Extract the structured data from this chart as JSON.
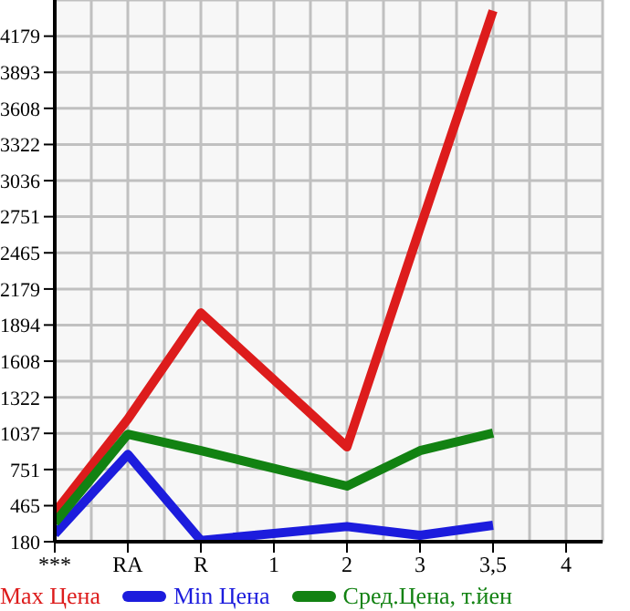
{
  "chart_data": {
    "type": "line",
    "categories": [
      "***",
      "RA",
      "R",
      "1",
      "2",
      "3",
      "3,5",
      "4"
    ],
    "series": [
      {
        "name": "Max Цена",
        "color": "#dd1c1c",
        "values": [
          410,
          1150,
          1990,
          null,
          930,
          2660,
          4380,
          null
        ]
      },
      {
        "name": "Min Цена",
        "color": "#1c1cdd",
        "values": [
          240,
          870,
          190,
          null,
          300,
          230,
          310,
          null
        ]
      },
      {
        "name": "Сред.Цена, т.йен",
        "color": "#128212",
        "values": [
          330,
          1030,
          900,
          null,
          620,
          900,
          1040,
          null
        ]
      }
    ],
    "ylim": [
      180,
      4465
    ],
    "yticks": [
      180,
      465,
      751,
      1037,
      1322,
      1608,
      1894,
      2179,
      2465,
      2751,
      3036,
      3322,
      3608,
      3893,
      4179
    ],
    "grid": true,
    "legend": "bottom",
    "marker": "none",
    "line_style": "solid"
  }
}
